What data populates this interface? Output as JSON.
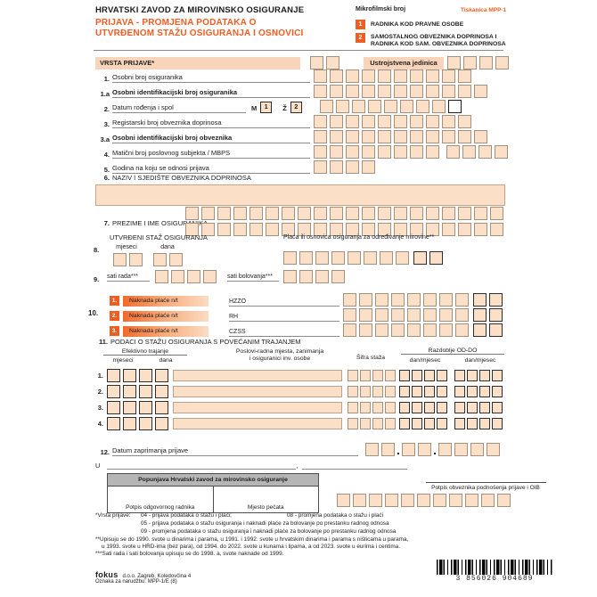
{
  "header": {
    "org": "HRVATSKI ZAVOD ZA MIROVINSKO OSIGURANJE",
    "title1": "PRIJAVA  - PROMJENA  PODATAKA  O",
    "title2": "UTVRĐENOM STAŽU OSIGURANJA  I OSNOVICI",
    "microfilm": "Mikrofilmski broj",
    "form_code": "Tiskanica MPP-1",
    "badge1_num": "1",
    "badge1_label": "RADNIKA KOD PRAVNE OSOBE",
    "badge2_num": "2",
    "badge2_label1": "SAMOSTALNOG OBVEZNIKA DOPRINOSA I",
    "badge2_label2": "RADNIKA KOD SAM. OBVEZNIKA DOPRINOSA"
  },
  "top": {
    "vrsta": "VRSTA PRIJAVE*",
    "ustrojstvena": "Ustrojstvena jedinica"
  },
  "rows": [
    {
      "num": "1.",
      "label": "Osobni broj osiguranika"
    },
    {
      "num": "1.a",
      "label": "Osobni identifikacijski broj osiguranika"
    },
    {
      "num": "2.",
      "label": "Datum rođenja i spol"
    },
    {
      "num": "3.",
      "label": "Registarski broj obveznika doprinosa"
    },
    {
      "num": "3.a",
      "label": "Osobni identifikacijski broj obveznika"
    },
    {
      "num": "4.",
      "label": "Matični broj poslovnog subjekta / MBPS"
    },
    {
      "num": "5.",
      "label": "Godina na koju se odnosi prijava"
    }
  ],
  "sex": {
    "m": "M",
    "m_code": "1",
    "z": "Ž",
    "z_code": "2"
  },
  "s6": {
    "num": "6.",
    "label": "NAZIV I SJEDIŠTE OBVEZNIKA DOPRINOSA"
  },
  "s7": {
    "num": "7.",
    "label": "PREZIME I IME OSIGURANIKA"
  },
  "s8": {
    "num": "8.",
    "title": "UTVRĐENI STAŽ OSIGURANJA",
    "months": "mjeseci",
    "days": "dana",
    "salary": "Plaća ili osnovica osiguranja za određivanje mirovine**"
  },
  "s9": {
    "num": "9.",
    "work": "sati rada***",
    "sick": "sati bolovanja***"
  },
  "s10": {
    "num": "10.",
    "rows": [
      {
        "n": "1.",
        "label": "Naknada plaće n/t",
        "code": "HZZO"
      },
      {
        "n": "2.",
        "label": "Naknada plaće n/t",
        "code": "RH"
      },
      {
        "n": "3.",
        "label": "Naknada plaće n/t",
        "code": "CZSS"
      }
    ]
  },
  "s11": {
    "num": "11.",
    "title": "PODACI O STAŽU OSIGURANJA S POVEĆANIM TRAJANJEM",
    "col_eff": "Efektivno trajanje",
    "col_m": "mjeseci",
    "col_d": "dana",
    "col_jobs1": "Poslovi-radna mjesta, zanimanja",
    "col_jobs2": "i osiguranici inv. osobe",
    "col_code": "Šifra staža",
    "col_period": "Razdoblje OD-DO",
    "col_dm1": "dan/mjesec",
    "col_dm2": "dan/mjesec",
    "row_nums": [
      "1.",
      "2.",
      "3.",
      "4."
    ]
  },
  "s12": {
    "num": "12.",
    "label": "Datum zaprimanja prijave"
  },
  "u_label": "U",
  "comma": ",",
  "bottom": {
    "office": "Popunjava Hrvatski zavod za mirovinsko osiguranje",
    "sig_worker": "Potpis odgovornog radnika",
    "seal": "Mjesto pečata",
    "sig_payer": "Potpis obveznika podnošenja prijave i OIB"
  },
  "footnotes": {
    "l1a": "*Vrsta prijave:",
    "l1b": "04 - prijava podataka o stažu i plaći;",
    "l1c": "08 - promjena podataka o stažu i plaći",
    "l2": "05 - prijava podataka o stažu osiguranja i naknadi plaće za bolovanje po prestanku radnog odnosa",
    "l3": "09 - promjena podataka o stažu osiguranja i naknadi plaće za bolovanje po prestanku radnog odnosa",
    "l4": "**Upisuju se do 1990. svote u dinarima i parama, u 1991. i 1992. svote u hrvatskim dinarima i parama s ništicama u parama,",
    "l5": "u 1993. svote u HRD-ima (bez para), od 1994. do 2022. svote u kunama i lipama, a od 2023. svote u eurima i centima.",
    "l6": "***Sati rada i sati bolovanja upisuju se do 1998. a, svote naknade od 1999."
  },
  "footer": {
    "publisher_bold": "fokus",
    "publisher_rest": "d.o.o. Zagreb, Koledovčina 4",
    "order": "Oznaka za narudžbu: MPP-1/E  (8)",
    "barcode": "3 856026 904689"
  },
  "colors": {
    "accent": "#f25c21",
    "box_fill": "#fcdfc7",
    "table_header": "#b5b5b5"
  }
}
